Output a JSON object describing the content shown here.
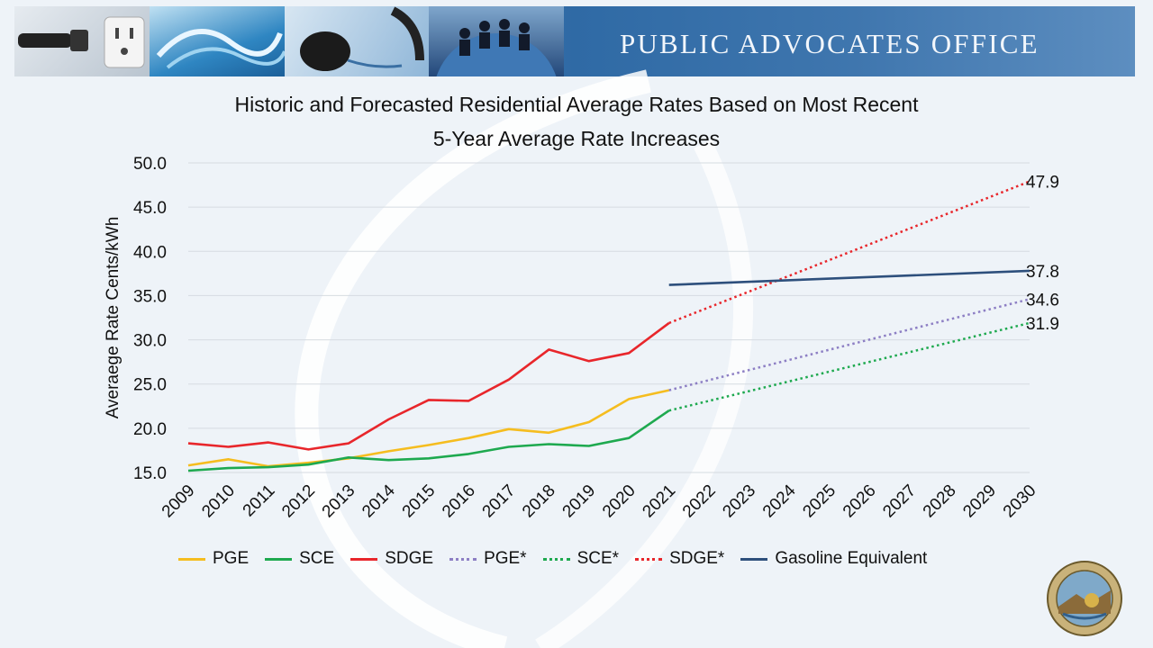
{
  "banner": {
    "title": "PUBLIC ADVOCATES OFFICE"
  },
  "chart_data": {
    "type": "line",
    "title_lines": [
      "Historic and Forecasted Residential Average Rates Based on Most Recent",
      "5-Year Average Rate Increases"
    ],
    "ylabel": "Averaege Rate Cents/kWh",
    "xlabel": "",
    "ylim": [
      15.0,
      50.0
    ],
    "y_ticks": [
      "15.0",
      "20.0",
      "25.0",
      "30.0",
      "35.0",
      "40.0",
      "45.0",
      "50.0"
    ],
    "categories": [
      "2009",
      "2010",
      "2011",
      "2012",
      "2013",
      "2014",
      "2015",
      "2016",
      "2017",
      "2018",
      "2019",
      "2020",
      "2021",
      "2022",
      "2023",
      "2024",
      "2025",
      "2026",
      "2027",
      "2028",
      "2029",
      "2030"
    ],
    "grid": true,
    "legend_position": "bottom",
    "series": [
      {
        "name": "PGE",
        "color": "#f5bd1f",
        "style": "solid",
        "x": [
          "2009",
          "2010",
          "2011",
          "2012",
          "2013",
          "2014",
          "2015",
          "2016",
          "2017",
          "2018",
          "2019",
          "2020",
          "2021"
        ],
        "values": [
          15.8,
          16.5,
          15.7,
          16.1,
          16.6,
          17.4,
          18.1,
          18.9,
          19.9,
          19.5,
          20.7,
          23.3,
          24.3
        ]
      },
      {
        "name": "SCE",
        "color": "#1ea94f",
        "style": "solid",
        "x": [
          "2009",
          "2010",
          "2011",
          "2012",
          "2013",
          "2014",
          "2015",
          "2016",
          "2017",
          "2018",
          "2019",
          "2020",
          "2021"
        ],
        "values": [
          15.2,
          15.5,
          15.6,
          15.9,
          16.7,
          16.4,
          16.6,
          17.1,
          17.9,
          18.2,
          18.0,
          18.9,
          22.0
        ]
      },
      {
        "name": "SDGE",
        "color": "#e8262b",
        "style": "solid",
        "x": [
          "2009",
          "2010",
          "2011",
          "2012",
          "2013",
          "2014",
          "2015",
          "2016",
          "2017",
          "2018",
          "2019",
          "2020",
          "2021"
        ],
        "values": [
          18.3,
          17.9,
          18.4,
          17.6,
          18.3,
          21.0,
          23.2,
          23.1,
          25.5,
          28.9,
          27.6,
          28.5,
          31.9
        ]
      },
      {
        "name": "PGE*",
        "color": "#8d7fc4",
        "style": "dotted",
        "x": [
          "2021",
          "2030"
        ],
        "values": [
          24.3,
          34.6
        ]
      },
      {
        "name": "SCE*",
        "color": "#1ea94f",
        "style": "dotted",
        "x": [
          "2021",
          "2030"
        ],
        "values": [
          22.0,
          31.9
        ]
      },
      {
        "name": "SDGE*",
        "color": "#e8262b",
        "style": "dotted",
        "x": [
          "2021",
          "2030"
        ],
        "values": [
          31.9,
          47.9
        ]
      },
      {
        "name": "Gasoline Equivalent",
        "color": "#2d4f7c",
        "style": "solid",
        "x": [
          "2021",
          "2030"
        ],
        "values": [
          36.2,
          37.8
        ]
      }
    ],
    "end_labels": [
      {
        "series": "SDGE*",
        "text": "47.9"
      },
      {
        "series": "Gasoline Equivalent",
        "text": "37.8"
      },
      {
        "series": "PGE*",
        "text": "34.6"
      },
      {
        "series": "SCE*",
        "text": "31.9"
      }
    ]
  }
}
